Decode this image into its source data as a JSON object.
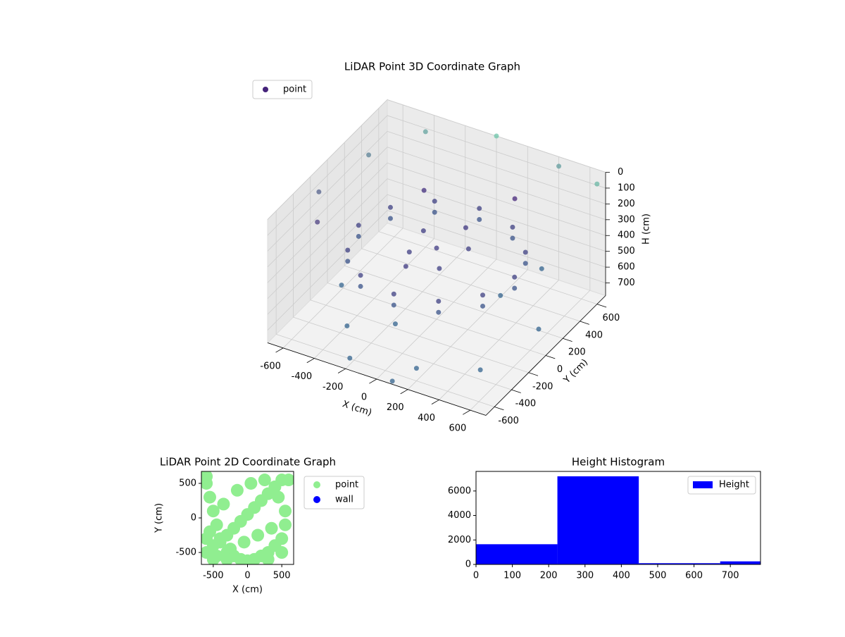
{
  "chart_data": [
    {
      "type": "scatter3d",
      "title": "LiDAR Point 3D Coordinate Graph",
      "x_label": "X (cm)",
      "y_label": "Y (cm)",
      "z_label": "H (cm)",
      "xlim": [
        -700,
        700
      ],
      "ylim": [
        -700,
        700
      ],
      "zlim": [
        0,
        780
      ],
      "z_inverted": true,
      "xticks": [
        -600,
        -400,
        -200,
        0,
        200,
        400,
        600
      ],
      "yticks": [
        -600,
        -400,
        -200,
        0,
        200,
        400,
        600
      ],
      "zticks": [
        0,
        100,
        200,
        300,
        400,
        500,
        600,
        700
      ],
      "legend": "upper left",
      "colormap": [
        "#6cc4a8",
        "#45237a",
        "#33638d"
      ],
      "series": [
        {
          "name": "point",
          "color": "#45237a",
          "x": [
            500,
            433,
            250,
            0,
            -250,
            -433,
            -500,
            -433,
            -250,
            0,
            250,
            433,
            500,
            433,
            250,
            0,
            -250,
            -433,
            -500,
            -433,
            -250,
            0,
            250,
            433,
            0,
            150,
            -150,
            100,
            -120,
            50,
            -60,
            200,
            -300,
            500,
            -100,
            300,
            600,
            -500,
            400,
            -200,
            100,
            -600,
            -400,
            0,
            400,
            700,
            -700,
            -600,
            200,
            -300
          ],
          "y": [
            0,
            250,
            433,
            500,
            433,
            250,
            0,
            -250,
            -433,
            -500,
            -433,
            -250,
            0,
            250,
            433,
            500,
            433,
            250,
            0,
            -250,
            -433,
            -500,
            -433,
            -250,
            0,
            100,
            120,
            -150,
            -100,
            250,
            -250,
            -600,
            -500,
            -400,
            -300,
            200,
            100,
            -200,
            500,
            -650,
            -700,
            300,
            600,
            700,
            700,
            600,
            -100,
            -300,
            550,
            400
          ],
          "z": [
            350,
            350,
            350,
            350,
            350,
            350,
            350,
            350,
            350,
            350,
            350,
            350,
            420,
            420,
            420,
            420,
            420,
            420,
            420,
            420,
            420,
            420,
            420,
            420,
            330,
            340,
            335,
            345,
            340,
            320,
            330,
            700,
            650,
            720,
            680,
            640,
            700,
            620,
            600,
            740,
            760,
            100,
            50,
            0,
            60,
            20,
            150,
            200,
            250,
            280
          ]
        }
      ]
    },
    {
      "type": "scatter",
      "title": "LiDAR Point 2D Coordinate Graph",
      "x_label": "X (cm)",
      "y_label": "Y (cm)",
      "xlim": [
        -673,
        673
      ],
      "ylim": [
        -673,
        673
      ],
      "xticks": [
        -500,
        0,
        500
      ],
      "yticks": [
        -500,
        0,
        500
      ],
      "legend": "outside upper right",
      "series": [
        {
          "name": "point",
          "color": "#90ee90",
          "x": [
            -600,
            -550,
            -500,
            -450,
            -400,
            -300,
            -200,
            -100,
            0,
            100,
            200,
            300,
            400,
            500,
            550,
            -600,
            -500,
            -400,
            -300,
            -200,
            -100,
            0,
            100,
            200,
            300,
            400,
            500,
            -550,
            -350,
            -150,
            50,
            250,
            450,
            -600,
            -450,
            -250,
            -50,
            150,
            350,
            550,
            -500,
            -300,
            -100,
            100,
            300,
            500,
            -600,
            600
          ],
          "y": [
            500,
            300,
            100,
            -100,
            -300,
            -500,
            -550,
            -600,
            -620,
            -600,
            -550,
            -500,
            -400,
            -300,
            -100,
            -500,
            -400,
            -350,
            -250,
            -150,
            -50,
            50,
            150,
            250,
            350,
            450,
            550,
            -200,
            200,
            400,
            500,
            550,
            300,
            -300,
            -550,
            -450,
            -350,
            -250,
            -150,
            100,
            -600,
            -600,
            -600,
            -600,
            -600,
            -500,
            600,
            550
          ]
        },
        {
          "name": "wall",
          "color": "#0000ff",
          "x": [],
          "y": []
        }
      ]
    },
    {
      "type": "histogram",
      "title": "Height Histogram",
      "bins": [
        0,
        224,
        448,
        672,
        783
      ],
      "counts": [
        1650,
        7200,
        100,
        250
      ],
      "xlim": [
        0,
        783
      ],
      "ylim": [
        0,
        7600
      ],
      "xticks": [
        0,
        100,
        200,
        300,
        400,
        500,
        600,
        700
      ],
      "yticks": [
        0,
        2000,
        4000,
        6000
      ],
      "legend": "upper right",
      "series_name": "Height",
      "color": "#0000ff"
    }
  ]
}
